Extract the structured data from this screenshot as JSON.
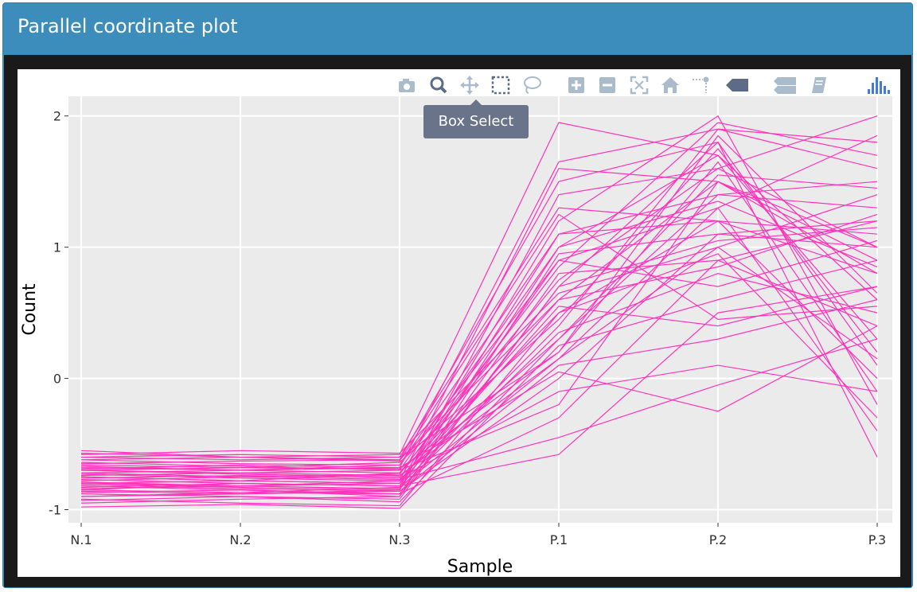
{
  "panel": {
    "title": "Parallel coordinate plot"
  },
  "tooltip": {
    "text": "Box Select"
  },
  "modebar": [
    {
      "name": "camera-icon",
      "label": "Download plot as a png"
    },
    {
      "name": "zoom-icon",
      "label": "Zoom"
    },
    {
      "name": "pan-icon",
      "label": "Pan"
    },
    {
      "name": "box-select-icon",
      "label": "Box Select"
    },
    {
      "name": "lasso-select-icon",
      "label": "Lasso Select"
    },
    {
      "name": "zoom-in-icon",
      "label": "Zoom in"
    },
    {
      "name": "zoom-out-icon",
      "label": "Zoom out"
    },
    {
      "name": "autoscale-icon",
      "label": "Autoscale"
    },
    {
      "name": "home-icon",
      "label": "Reset axes"
    },
    {
      "name": "spike-lines-icon",
      "label": "Toggle Spike Lines"
    },
    {
      "name": "hover-closest-icon",
      "label": "Show closest data on hover"
    },
    {
      "name": "hover-compare-icon",
      "label": "Compare data on hover"
    },
    {
      "name": "edit-in-chart-studio-icon",
      "label": "Edit in Chart Studio"
    },
    {
      "name": "plotly-logo-icon",
      "label": "Produced with Plotly"
    }
  ],
  "colors": {
    "line": "#ff33bb",
    "panel": "#3c8dbc",
    "plot_bg": "#ebebeb",
    "grid": "#ffffff",
    "modebar_icon": "#aabbcc",
    "modebar_active": "#5c6b86",
    "plotly_logo": "#447adb"
  },
  "chart_data": {
    "type": "line",
    "title": "",
    "xlabel": "Sample",
    "ylabel": "Count",
    "categories": [
      "N.1",
      "N.2",
      "N.3",
      "P.1",
      "P.2",
      "P.3"
    ],
    "ylim": [
      -1.1,
      2.15
    ],
    "yticks": [
      -1,
      0,
      1,
      2
    ],
    "grid": true,
    "legend": "none",
    "series": [
      {
        "values": [
          -0.55,
          -0.6,
          -0.58,
          1.95,
          1.7,
          0.3
        ]
      },
      {
        "values": [
          -0.72,
          -0.7,
          -0.68,
          1.65,
          1.9,
          1.8
        ]
      },
      {
        "values": [
          -0.8,
          -0.82,
          -0.78,
          1.6,
          1.5,
          1.0
        ]
      },
      {
        "values": [
          -0.65,
          -0.63,
          -0.62,
          1.5,
          1.8,
          0.1
        ]
      },
      {
        "values": [
          -0.9,
          -0.88,
          -0.85,
          1.4,
          1.6,
          2.0
        ]
      },
      {
        "values": [
          -0.6,
          -0.58,
          -0.6,
          1.3,
          1.2,
          0.8
        ]
      },
      {
        "values": [
          -0.75,
          -0.78,
          -0.8,
          1.2,
          2.0,
          -0.2
        ]
      },
      {
        "values": [
          -0.85,
          -0.8,
          -0.82,
          1.1,
          1.4,
          1.5
        ]
      },
      {
        "values": [
          -0.7,
          -0.72,
          -0.7,
          1.0,
          1.7,
          0.6
        ]
      },
      {
        "values": [
          -0.95,
          -0.92,
          -0.9,
          0.95,
          1.1,
          1.2
        ]
      },
      {
        "values": [
          -0.62,
          -0.65,
          -0.66,
          0.9,
          1.3,
          -0.4
        ]
      },
      {
        "values": [
          -0.78,
          -0.75,
          -0.73,
          0.85,
          1.95,
          1.7
        ]
      },
      {
        "values": [
          -0.82,
          -0.85,
          -0.88,
          0.8,
          0.9,
          0.4
        ]
      },
      {
        "values": [
          -0.68,
          -0.7,
          -0.72,
          0.75,
          1.6,
          1.0
        ]
      },
      {
        "values": [
          -0.88,
          -0.9,
          -0.92,
          0.7,
          1.8,
          -0.6
        ]
      },
      {
        "values": [
          -0.58,
          -0.55,
          -0.57,
          0.65,
          1.0,
          1.4
        ]
      },
      {
        "values": [
          -0.73,
          -0.76,
          -0.78,
          0.6,
          1.5,
          0.9
        ]
      },
      {
        "values": [
          -0.8,
          -0.78,
          -0.8,
          0.55,
          0.4,
          0.7
        ]
      },
      {
        "values": [
          -0.92,
          -0.95,
          -0.97,
          0.5,
          1.2,
          1.1
        ]
      },
      {
        "values": [
          -0.66,
          -0.68,
          -0.64,
          0.45,
          1.75,
          0.2
        ]
      },
      {
        "values": [
          -0.77,
          -0.8,
          -0.82,
          0.4,
          1.9,
          1.6
        ]
      },
      {
        "values": [
          -0.84,
          -0.82,
          -0.84,
          0.35,
          0.8,
          0.5
        ]
      },
      {
        "values": [
          -0.7,
          -0.73,
          -0.75,
          0.3,
          1.4,
          1.3
        ]
      },
      {
        "values": [
          -0.98,
          -0.96,
          -0.99,
          0.25,
          0.6,
          0.9
        ]
      },
      {
        "values": [
          -0.6,
          -0.62,
          -0.6,
          0.2,
          1.65,
          -0.1
        ]
      },
      {
        "values": [
          -0.74,
          -0.72,
          -0.74,
          0.15,
          1.3,
          1.85
        ]
      },
      {
        "values": [
          -0.86,
          -0.88,
          -0.86,
          0.1,
          0.3,
          0.6
        ]
      },
      {
        "values": [
          -0.69,
          -0.66,
          -0.68,
          0.05,
          -0.25,
          0.4
        ]
      },
      {
        "values": [
          -0.81,
          -0.84,
          -0.86,
          0.0,
          1.1,
          1.0
        ]
      },
      {
        "values": [
          -0.76,
          -0.74,
          -0.76,
          -0.1,
          0.1,
          -0.1
        ]
      },
      {
        "values": [
          -0.64,
          -0.67,
          -0.7,
          -0.2,
          1.5,
          0.8
        ]
      },
      {
        "values": [
          -0.9,
          -0.87,
          -0.88,
          -0.3,
          0.9,
          1.2
        ]
      },
      {
        "values": [
          -0.72,
          -0.75,
          -0.77,
          -0.45,
          -0.05,
          0.3
        ]
      },
      {
        "values": [
          -0.83,
          -0.8,
          -0.82,
          -0.58,
          0.5,
          0.7
        ]
      },
      {
        "values": [
          -0.67,
          -0.7,
          -0.66,
          1.1,
          1.2,
          0.0
        ]
      },
      {
        "values": [
          -0.79,
          -0.82,
          -0.8,
          0.9,
          0.7,
          1.05
        ]
      },
      {
        "values": [
          -0.87,
          -0.85,
          -0.9,
          0.7,
          1.05,
          1.15
        ]
      },
      {
        "values": [
          -0.62,
          -0.6,
          -0.63,
          1.25,
          0.45,
          0.55
        ]
      },
      {
        "values": [
          -0.75,
          -0.78,
          -0.72,
          0.5,
          0.95,
          -0.3
        ]
      },
      {
        "values": [
          -0.93,
          -0.9,
          -0.94,
          0.3,
          1.55,
          1.45
        ]
      },
      {
        "values": [
          -0.7,
          -0.68,
          -0.69,
          0.2,
          1.85,
          0.65
        ]
      },
      {
        "values": [
          -0.8,
          -0.83,
          -0.85,
          1.0,
          1.35,
          0.85
        ]
      },
      {
        "values": [
          -0.57,
          -0.6,
          -0.62,
          0.6,
          0.85,
          1.25
        ]
      },
      {
        "values": [
          -0.85,
          -0.87,
          -0.83,
          0.15,
          1.0,
          0.15
        ]
      }
    ]
  }
}
